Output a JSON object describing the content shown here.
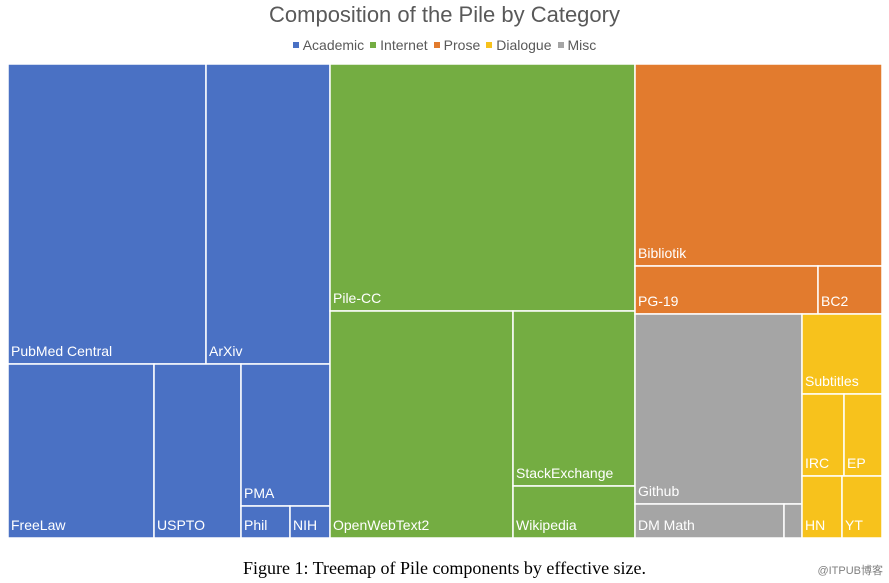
{
  "chart_data": {
    "type": "treemap",
    "title": "Composition of the Pile by Category",
    "legend": [
      {
        "name": "Academic",
        "color": "#4a71c4"
      },
      {
        "name": "Internet",
        "color": "#74ad42"
      },
      {
        "name": "Prose",
        "color": "#e27b2e"
      },
      {
        "name": "Dialogue",
        "color": "#f7c21c"
      },
      {
        "name": "Misc",
        "color": "#a5a5a5"
      }
    ],
    "legend_position": "top",
    "items": [
      {
        "label": "PubMed Central",
        "category": "Academic"
      },
      {
        "label": "ArXiv",
        "category": "Academic"
      },
      {
        "label": "FreeLaw",
        "category": "Academic"
      },
      {
        "label": "USPTO",
        "category": "Academic"
      },
      {
        "label": "PMA",
        "category": "Academic"
      },
      {
        "label": "Phil",
        "category": "Academic"
      },
      {
        "label": "NIH",
        "category": "Academic"
      },
      {
        "label": "Pile-CC",
        "category": "Internet"
      },
      {
        "label": "OpenWebText2",
        "category": "Internet"
      },
      {
        "label": "StackExchange",
        "category": "Internet"
      },
      {
        "label": "Wikipedia",
        "category": "Internet"
      },
      {
        "label": "Bibliotik",
        "category": "Prose"
      },
      {
        "label": "PG-19",
        "category": "Prose"
      },
      {
        "label": "BC2",
        "category": "Prose"
      },
      {
        "label": "Github",
        "category": "Misc"
      },
      {
        "label": "DM Math",
        "category": "Misc"
      },
      {
        "label": "",
        "category": "Misc"
      },
      {
        "label": "Subtitles",
        "category": "Dialogue"
      },
      {
        "label": "IRC",
        "category": "Dialogue"
      },
      {
        "label": "EP",
        "category": "Dialogue"
      },
      {
        "label": "HN",
        "category": "Dialogue"
      },
      {
        "label": "YT",
        "category": "Dialogue"
      }
    ]
  },
  "caption": "Figure 1: Treemap of Pile components by effective size.",
  "watermark": "@ITPUB博客"
}
